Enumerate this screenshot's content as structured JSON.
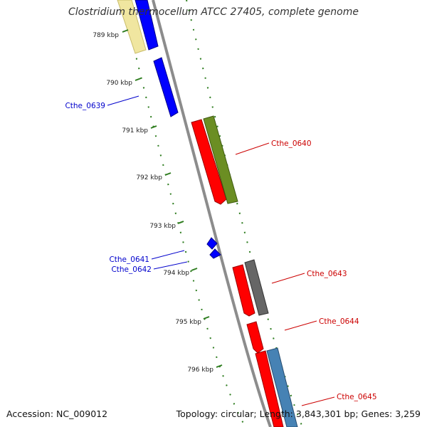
{
  "title": "Clostridium thermocellum ATCC 27405, complete genome",
  "footer": {
    "accession": "Accession: NC_009012",
    "topology": "Topology: circular; Length: 3,843,301 bp; Genes: 3,259"
  },
  "colors": {
    "backbone": "#8c8c8c",
    "tick": "#2e7d1f",
    "reverse_label": "#0000cc",
    "forward_label": "#cc0000"
  },
  "ticks": [
    "789 kbp",
    "790 kbp",
    "791 kbp",
    "792 kbp",
    "793 kbp",
    "794 kbp",
    "795 kbp",
    "796 kbp"
  ],
  "genes": {
    "reverse": [
      {
        "label": "Cthe_0639",
        "color": "#0000ff"
      },
      {
        "label": "Cthe_0641",
        "color": "#0000ff"
      },
      {
        "label": "Cthe_0642",
        "color": "#0000ff"
      }
    ],
    "forward": [
      {
        "label": "Cthe_0640",
        "color": "#ff0000"
      },
      {
        "label": "Cthe_0643",
        "color": "#ff0000"
      },
      {
        "label": "Cthe_0644",
        "color": "#ff0000"
      },
      {
        "label": "Cthe_0645",
        "color": "#ff0000"
      }
    ]
  }
}
